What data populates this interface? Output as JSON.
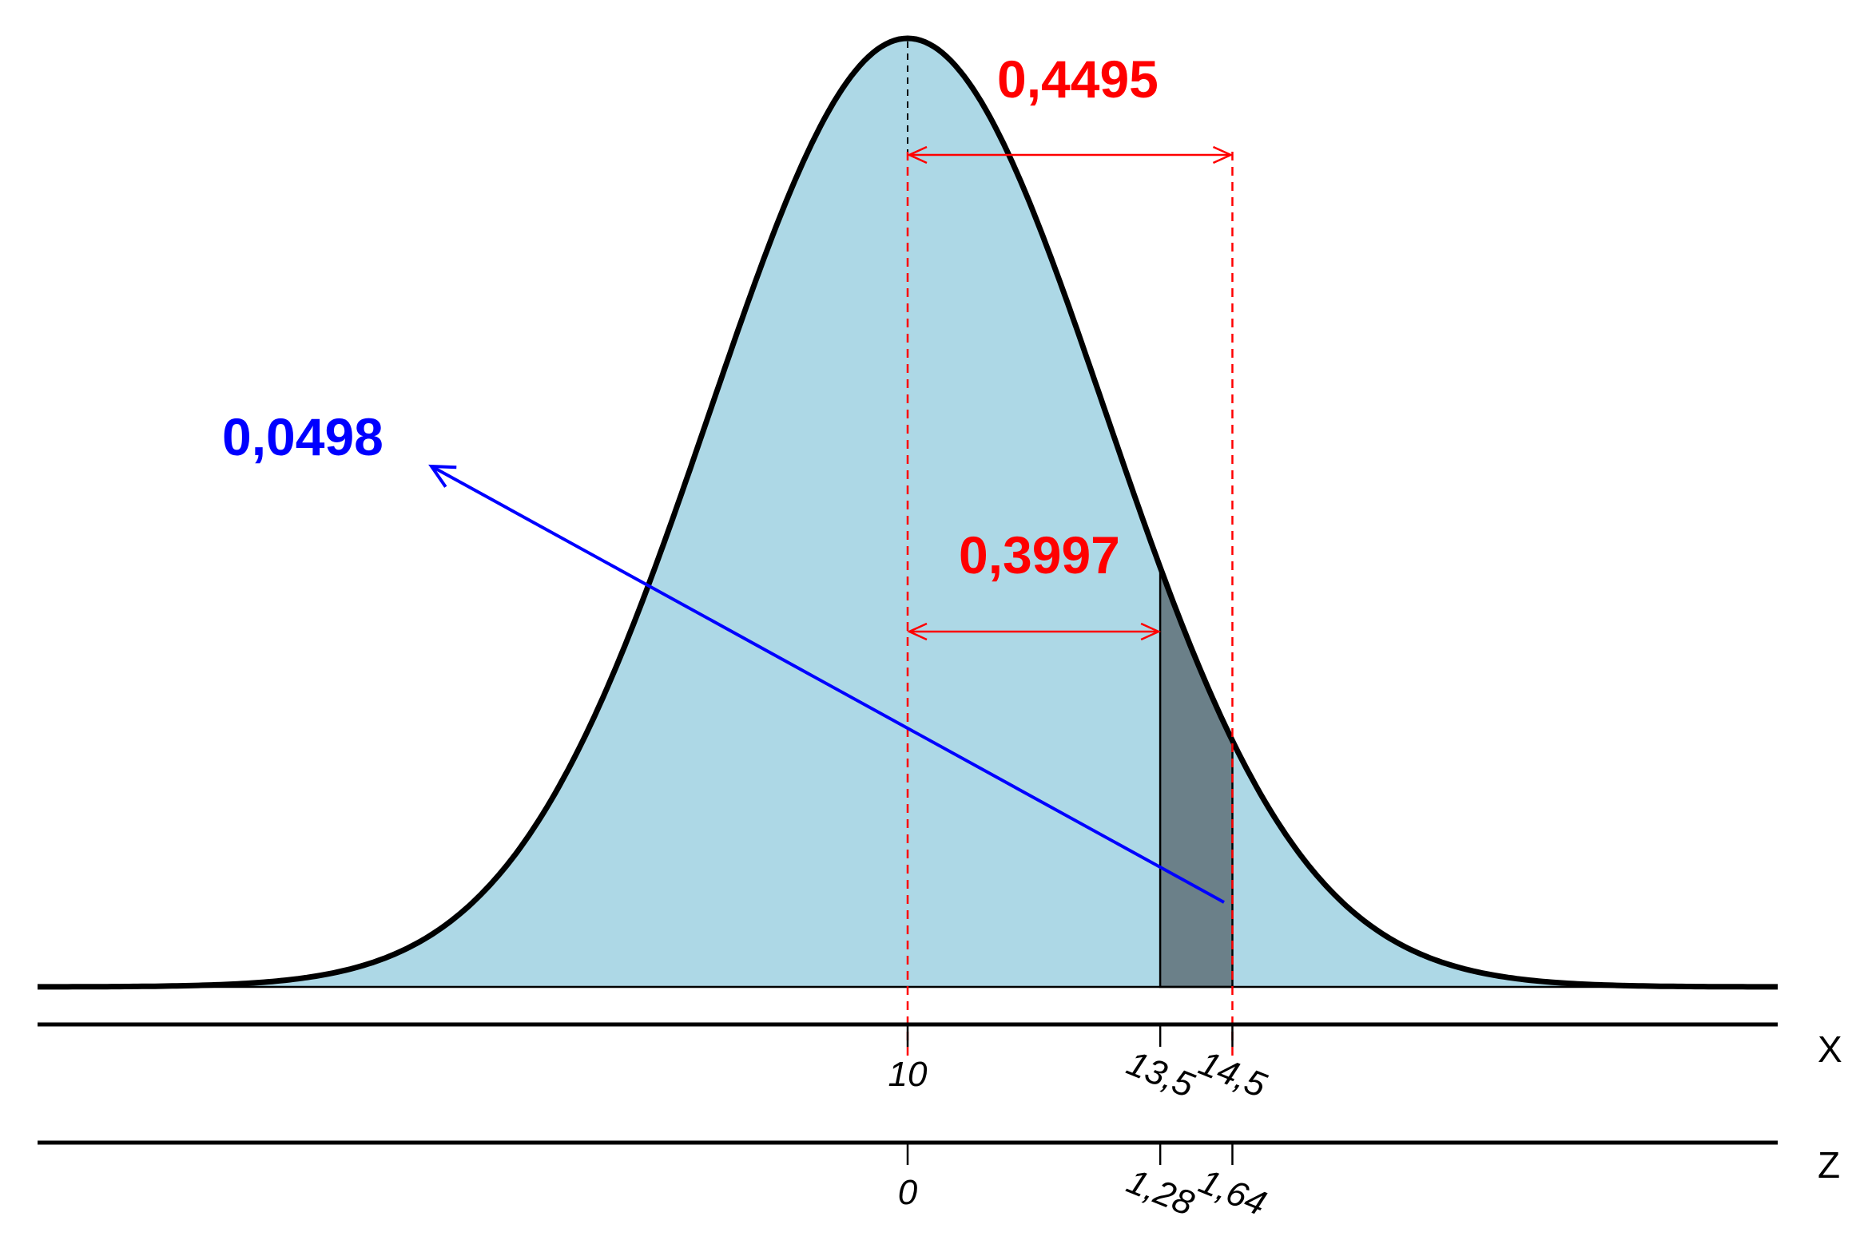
{
  "chart_data": {
    "type": "area",
    "distribution": "normal",
    "mean": 10,
    "sd": 2.74,
    "colors": {
      "fill": "#add8e6",
      "shaded": "#6b8089",
      "curve": "#000000",
      "guide": "#ff0000",
      "arrow": "#0000ff"
    },
    "shaded_region": {
      "from_x": 13.5,
      "to_x": 14.5
    },
    "axes": [
      {
        "id": "x",
        "name": "X",
        "ticks": [
          {
            "value": 10,
            "label": "10"
          },
          {
            "value": 13.5,
            "label": "13,5"
          },
          {
            "value": 14.5,
            "label": "14,5"
          }
        ]
      },
      {
        "id": "z",
        "name": "Z",
        "ticks": [
          {
            "value": 10,
            "label": "0"
          },
          {
            "value": 13.5,
            "label": "1,28"
          },
          {
            "value": 14.5,
            "label": "1,64"
          }
        ]
      }
    ],
    "annotations": [
      {
        "id": "area-mean-to-14-5",
        "text": "0,4495",
        "from_x": 10,
        "to_x": 14.5,
        "color": "#ff0000"
      },
      {
        "id": "area-mean-to-13-5",
        "text": "0,3997",
        "from_x": 10,
        "to_x": 13.5,
        "color": "#ff0000"
      },
      {
        "id": "shaded-area",
        "text": "0,0498",
        "color": "#0000ff"
      }
    ]
  }
}
